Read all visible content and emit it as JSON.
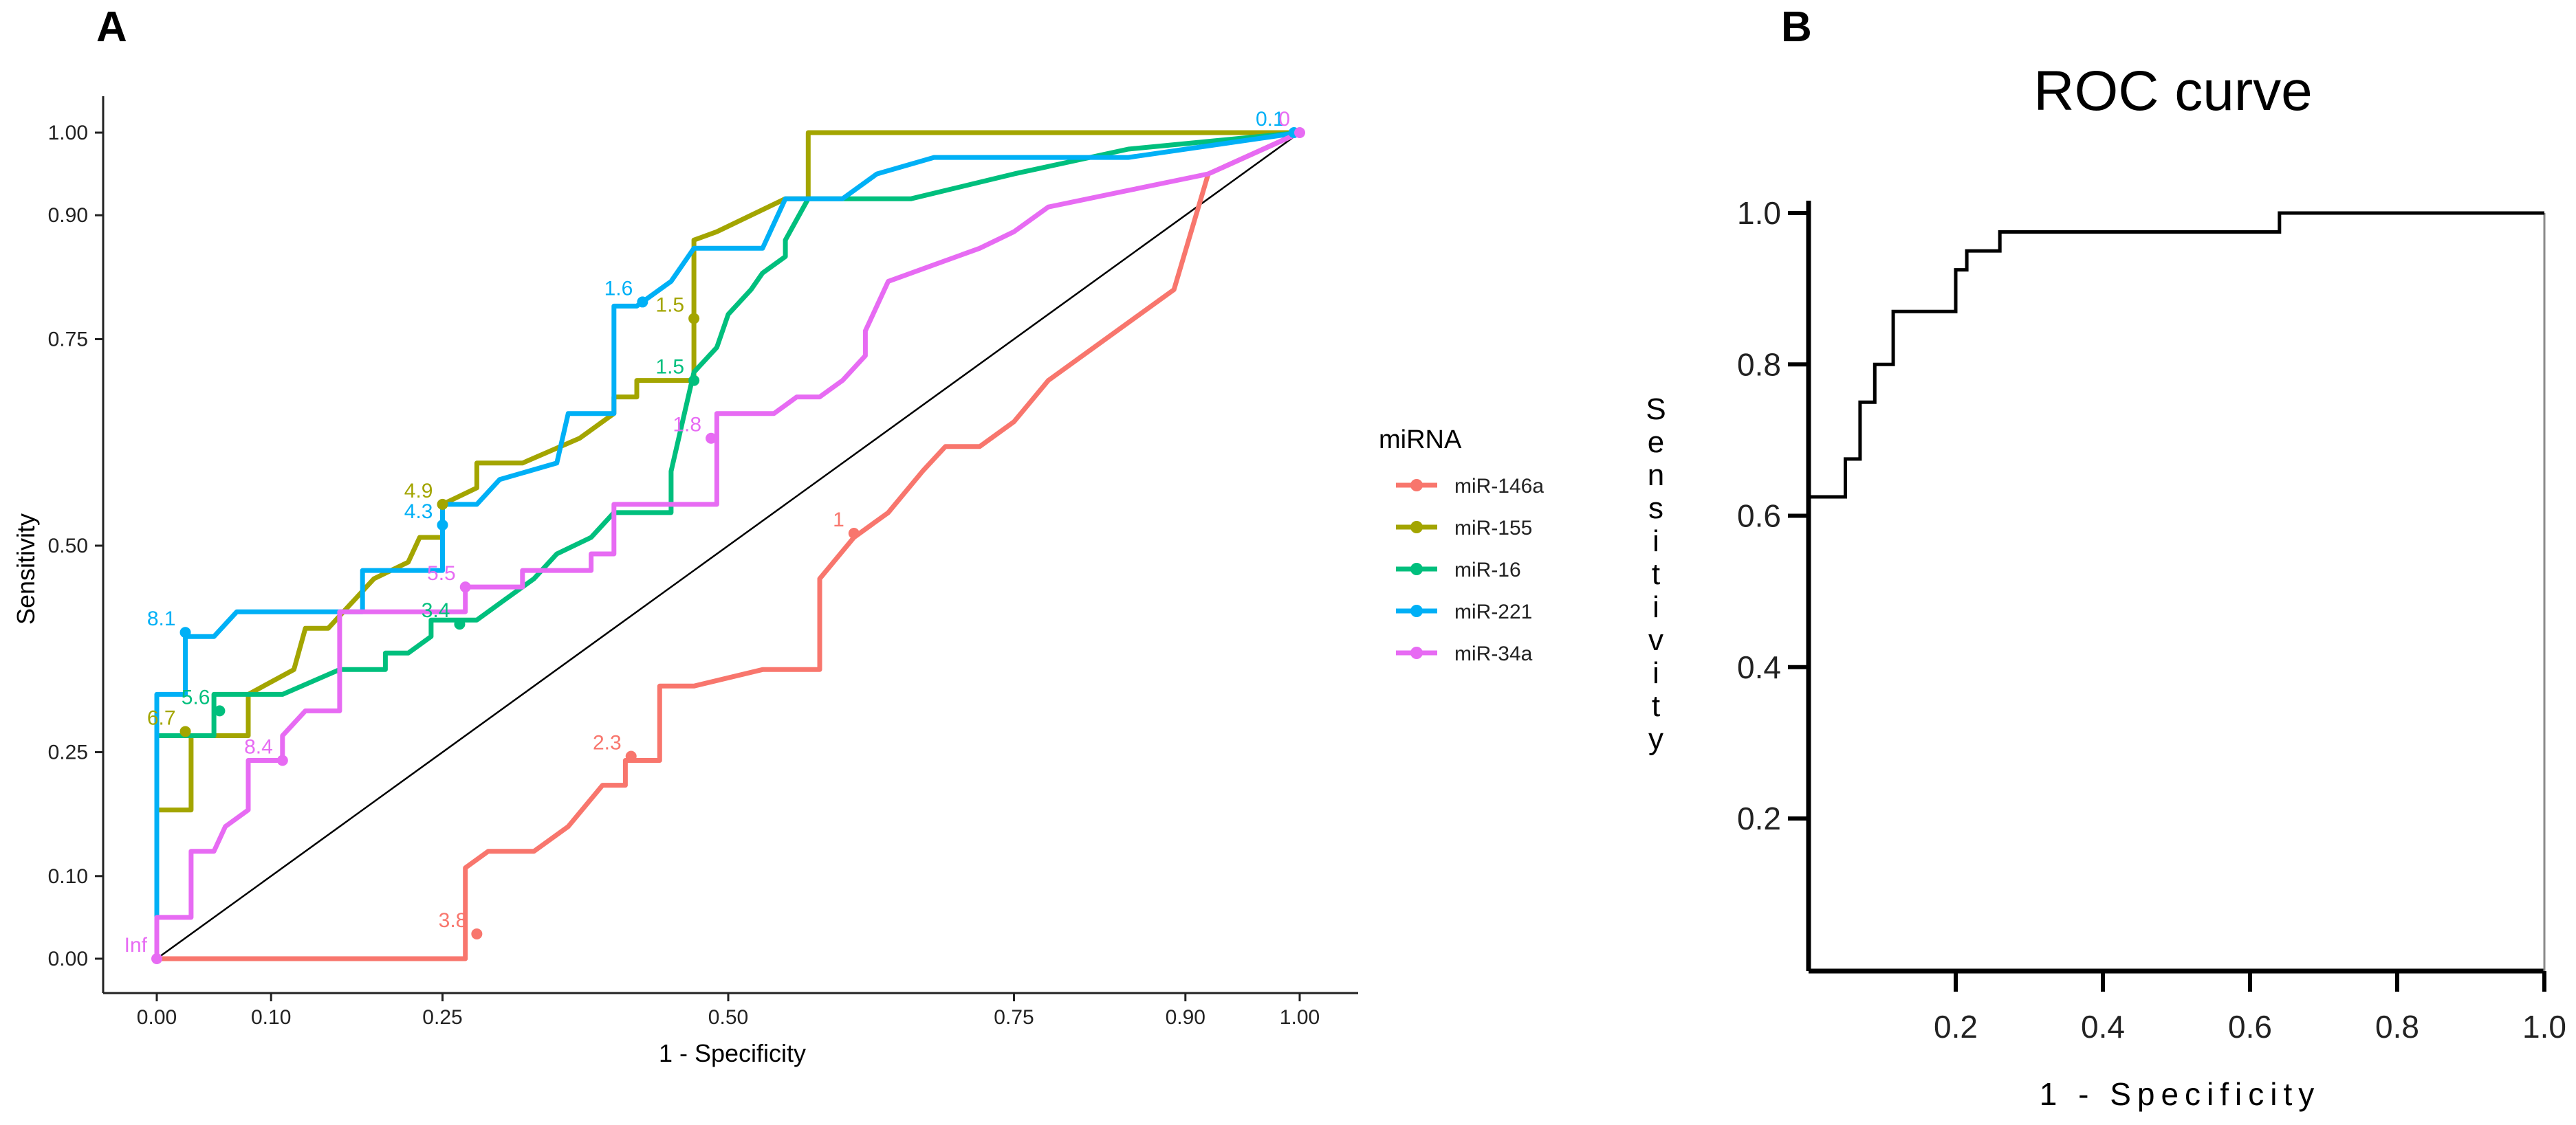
{
  "chart_data": [
    {
      "panel_label": "A",
      "type": "line",
      "subtype": "roc_step",
      "title": "",
      "xlabel": "1 - Specificity",
      "ylabel": "Sensitivity",
      "xlim": [
        0,
        1
      ],
      "ylim": [
        0,
        1
      ],
      "xticks": [
        0,
        0.1,
        0.25,
        0.5,
        0.75,
        0.9,
        1
      ],
      "xtick_labels": [
        "0.00",
        "0.10",
        "0.25",
        "0.50",
        "0.75",
        "0.90",
        "1.00"
      ],
      "yticks": [
        0,
        0.1,
        0.25,
        0.5,
        0.75,
        0.9,
        1
      ],
      "ytick_labels": [
        "0.00",
        "0.10",
        "0.25",
        "0.50",
        "0.75",
        "0.90",
        "1.00"
      ],
      "legend": {
        "title": "miRNA",
        "placement": "right"
      },
      "reference_line": [
        [
          0,
          0
        ],
        [
          1,
          1
        ]
      ],
      "series": [
        {
          "name": "miR-146a",
          "color": "#F8766D",
          "points": [
            [
              0,
              0
            ],
            [
              0.27,
              0
            ],
            [
              0.27,
              0.11
            ],
            [
              0.29,
              0.13
            ],
            [
              0.33,
              0.13
            ],
            [
              0.36,
              0.16
            ],
            [
              0.39,
              0.21
            ],
            [
              0.41,
              0.21
            ],
            [
              0.41,
              0.24
            ],
            [
              0.44,
              0.24
            ],
            [
              0.44,
              0.33
            ],
            [
              0.47,
              0.33
            ],
            [
              0.53,
              0.35
            ],
            [
              0.58,
              0.35
            ],
            [
              0.58,
              0.46
            ],
            [
              0.61,
              0.51
            ],
            [
              0.64,
              0.54
            ],
            [
              0.67,
              0.59
            ],
            [
              0.69,
              0.62
            ],
            [
              0.72,
              0.62
            ],
            [
              0.75,
              0.65
            ],
            [
              0.78,
              0.7
            ],
            [
              0.89,
              0.81
            ],
            [
              0.92,
              0.95
            ],
            [
              1,
              1
            ]
          ],
          "threshold_points": [
            {
              "x": 0.28,
              "y": 0.03,
              "label": "3.8"
            },
            {
              "x": 0.415,
              "y": 0.245,
              "label": "2.3"
            },
            {
              "x": 0.61,
              "y": 0.515,
              "label": "1"
            }
          ]
        },
        {
          "name": "miR-155",
          "color": "#A3A500",
          "points": [
            [
              0,
              0
            ],
            [
              0,
              0.18
            ],
            [
              0.03,
              0.18
            ],
            [
              0.03,
              0.27
            ],
            [
              0.08,
              0.27
            ],
            [
              0.08,
              0.32
            ],
            [
              0.12,
              0.35
            ],
            [
              0.13,
              0.4
            ],
            [
              0.15,
              0.4
            ],
            [
              0.19,
              0.46
            ],
            [
              0.22,
              0.48
            ],
            [
              0.23,
              0.51
            ],
            [
              0.25,
              0.51
            ],
            [
              0.25,
              0.55
            ],
            [
              0.28,
              0.57
            ],
            [
              0.28,
              0.6
            ],
            [
              0.32,
              0.6
            ],
            [
              0.37,
              0.63
            ],
            [
              0.4,
              0.66
            ],
            [
              0.4,
              0.68
            ],
            [
              0.42,
              0.68
            ],
            [
              0.42,
              0.7
            ],
            [
              0.47,
              0.7
            ],
            [
              0.47,
              0.87
            ],
            [
              0.49,
              0.88
            ],
            [
              0.55,
              0.92
            ],
            [
              0.57,
              0.92
            ],
            [
              0.57,
              1
            ],
            [
              1,
              1
            ]
          ],
          "threshold_points": [
            {
              "x": 0.025,
              "y": 0.275,
              "label": "6.7"
            },
            {
              "x": 0.25,
              "y": 0.55,
              "label": "4.9"
            },
            {
              "x": 0.47,
              "y": 0.775,
              "label": "1.5"
            }
          ]
        },
        {
          "name": "miR-16",
          "color": "#00BF7D",
          "points": [
            [
              0,
              0
            ],
            [
              0,
              0.27
            ],
            [
              0.05,
              0.27
            ],
            [
              0.05,
              0.32
            ],
            [
              0.09,
              0.32
            ],
            [
              0.11,
              0.32
            ],
            [
              0.16,
              0.35
            ],
            [
              0.2,
              0.35
            ],
            [
              0.2,
              0.37
            ],
            [
              0.22,
              0.37
            ],
            [
              0.24,
              0.39
            ],
            [
              0.24,
              0.41
            ],
            [
              0.28,
              0.41
            ],
            [
              0.3,
              0.43
            ],
            [
              0.33,
              0.46
            ],
            [
              0.35,
              0.49
            ],
            [
              0.38,
              0.51
            ],
            [
              0.4,
              0.54
            ],
            [
              0.42,
              0.54
            ],
            [
              0.43,
              0.54
            ],
            [
              0.45,
              0.54
            ],
            [
              0.45,
              0.59
            ],
            [
              0.47,
              0.71
            ],
            [
              0.49,
              0.74
            ],
            [
              0.5,
              0.78
            ],
            [
              0.52,
              0.81
            ],
            [
              0.53,
              0.83
            ],
            [
              0.55,
              0.85
            ],
            [
              0.55,
              0.87
            ],
            [
              0.57,
              0.92
            ],
            [
              0.66,
              0.92
            ],
            [
              0.75,
              0.95
            ],
            [
              0.85,
              0.98
            ],
            [
              1,
              1
            ]
          ],
          "threshold_points": [
            {
              "x": 0.055,
              "y": 0.3,
              "label": "5.6"
            },
            {
              "x": 0.265,
              "y": 0.405,
              "label": "3.4"
            },
            {
              "x": 0.47,
              "y": 0.7,
              "label": "1.5"
            }
          ]
        },
        {
          "name": "miR-221",
          "color": "#00B0F6",
          "points": [
            [
              0,
              0
            ],
            [
              0,
              0.06
            ],
            [
              0,
              0.32
            ],
            [
              0.025,
              0.32
            ],
            [
              0.025,
              0.39
            ],
            [
              0.05,
              0.39
            ],
            [
              0.07,
              0.42
            ],
            [
              0.15,
              0.42
            ],
            [
              0.18,
              0.42
            ],
            [
              0.18,
              0.47
            ],
            [
              0.25,
              0.47
            ],
            [
              0.25,
              0.55
            ],
            [
              0.28,
              0.55
            ],
            [
              0.3,
              0.58
            ],
            [
              0.35,
              0.6
            ],
            [
              0.36,
              0.66
            ],
            [
              0.4,
              0.66
            ],
            [
              0.4,
              0.79
            ],
            [
              0.42,
              0.79
            ],
            [
              0.45,
              0.82
            ],
            [
              0.47,
              0.86
            ],
            [
              0.49,
              0.86
            ],
            [
              0.5,
              0.86
            ],
            [
              0.53,
              0.86
            ],
            [
              0.55,
              0.92
            ],
            [
              0.6,
              0.92
            ],
            [
              0.63,
              0.95
            ],
            [
              0.68,
              0.97
            ],
            [
              0.85,
              0.97
            ],
            [
              1,
              1
            ]
          ],
          "threshold_points": [
            {
              "x": 0.025,
              "y": 0.395,
              "label": "8.1"
            },
            {
              "x": 0.25,
              "y": 0.525,
              "label": "4.3"
            },
            {
              "x": 0.425,
              "y": 0.795,
              "label": "1.6"
            },
            {
              "x": 0.995,
              "y": 1.0,
              "label": "0.1"
            }
          ]
        },
        {
          "name": "miR-34a",
          "color": "#E76BF3",
          "points": [
            [
              0,
              0
            ],
            [
              0,
              0.05
            ],
            [
              0.03,
              0.05
            ],
            [
              0.03,
              0.13
            ],
            [
              0.05,
              0.13
            ],
            [
              0.06,
              0.16
            ],
            [
              0.08,
              0.18
            ],
            [
              0.08,
              0.24
            ],
            [
              0.11,
              0.24
            ],
            [
              0.11,
              0.27
            ],
            [
              0.13,
              0.3
            ],
            [
              0.16,
              0.3
            ],
            [
              0.16,
              0.42
            ],
            [
              0.19,
              0.42
            ],
            [
              0.27,
              0.42
            ],
            [
              0.27,
              0.45
            ],
            [
              0.29,
              0.45
            ],
            [
              0.32,
              0.45
            ],
            [
              0.32,
              0.47
            ],
            [
              0.35,
              0.47
            ],
            [
              0.38,
              0.47
            ],
            [
              0.38,
              0.49
            ],
            [
              0.4,
              0.49
            ],
            [
              0.4,
              0.55
            ],
            [
              0.45,
              0.55
            ],
            [
              0.49,
              0.55
            ],
            [
              0.49,
              0.66
            ],
            [
              0.54,
              0.66
            ],
            [
              0.56,
              0.68
            ],
            [
              0.58,
              0.68
            ],
            [
              0.6,
              0.7
            ],
            [
              0.62,
              0.73
            ],
            [
              0.62,
              0.76
            ],
            [
              0.64,
              0.82
            ],
            [
              0.68,
              0.84
            ],
            [
              0.72,
              0.86
            ],
            [
              0.75,
              0.88
            ],
            [
              0.78,
              0.91
            ],
            [
              0.85,
              0.93
            ],
            [
              0.92,
              0.95
            ],
            [
              1,
              1
            ]
          ],
          "threshold_points": [
            {
              "x": 0.0,
              "y": 0.0,
              "label": "Inf"
            },
            {
              "x": 0.11,
              "y": 0.24,
              "label": "8.4"
            },
            {
              "x": 0.27,
              "y": 0.45,
              "label": "5.5"
            },
            {
              "x": 0.485,
              "y": 0.63,
              "label": "1.8"
            },
            {
              "x": 1.0,
              "y": 1.0,
              "label": "0"
            }
          ]
        }
      ]
    },
    {
      "panel_label": "B",
      "type": "line",
      "subtype": "roc_step",
      "title": "ROC curve",
      "xlabel": "1 - Specificity",
      "ylabel": "Sensitivity",
      "xlim": [
        0,
        1
      ],
      "ylim": [
        0,
        1.04
      ],
      "xticks": [
        0.2,
        0.4,
        0.6,
        0.8,
        1.0
      ],
      "xtick_labels": [
        "0.2",
        "0.4",
        "0.6",
        "0.8",
        "1.0"
      ],
      "yticks": [
        0.2,
        0.4,
        0.6,
        0.8,
        1.0
      ],
      "ytick_labels": [
        "0.2",
        "0.4",
        "0.6",
        "0.8",
        "1.0"
      ],
      "series": [
        {
          "name": "ROC",
          "color": "#000000",
          "points": [
            [
              0,
              0.625
            ],
            [
              0.05,
              0.625
            ],
            [
              0.05,
              0.675
            ],
            [
              0.07,
              0.675
            ],
            [
              0.07,
              0.75
            ],
            [
              0.09,
              0.75
            ],
            [
              0.09,
              0.8
            ],
            [
              0.115,
              0.8
            ],
            [
              0.115,
              0.87
            ],
            [
              0.2,
              0.87
            ],
            [
              0.2,
              0.925
            ],
            [
              0.215,
              0.925
            ],
            [
              0.215,
              0.95
            ],
            [
              0.26,
              0.95
            ],
            [
              0.26,
              0.975
            ],
            [
              0.64,
              0.975
            ],
            [
              0.64,
              1.0
            ],
            [
              1.0,
              1.0
            ]
          ]
        }
      ]
    }
  ]
}
